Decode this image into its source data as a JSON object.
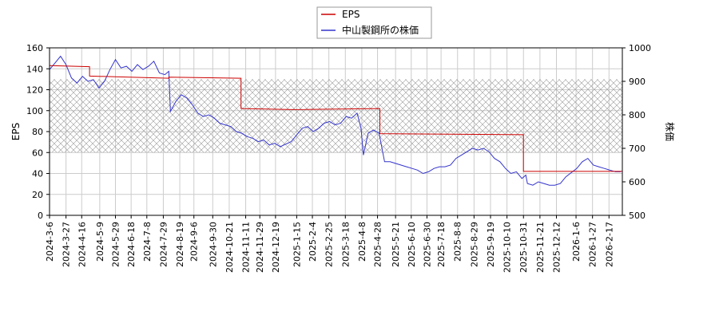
{
  "chart_data": {
    "type": "line",
    "legend": {
      "placement": "top-center",
      "entries": [
        {
          "label": "EPS",
          "color": "#cc0000"
        },
        {
          "label": "中山製鋼所の株価",
          "color": "#3333cc"
        }
      ]
    },
    "ylabel_left": "EPS",
    "ylabel_right": "株価",
    "ylim_left": [
      0,
      160
    ],
    "ylim_right": [
      500,
      1000
    ],
    "yticks_left": [
      "0",
      "20",
      "40",
      "60",
      "80",
      "100",
      "120",
      "140",
      "160"
    ],
    "yticks_right": [
      "500",
      "600",
      "700",
      "800",
      "900",
      "1000"
    ],
    "xlim": [
      "2024-03-06",
      "2026-03-06"
    ],
    "xticks": [
      "2024-3-6",
      "2024-3-27",
      "2024-4-16",
      "2024-5-9",
      "2024-5-29",
      "2024-6-18",
      "2024-7-8",
      "2024-7-29",
      "2024-8-19",
      "2024-9-6",
      "2024-9-30",
      "2024-10-21",
      "2024-11-11",
      "2024-11-29",
      "2024-12-19",
      "2025-1-15",
      "2025-2-4",
      "2025-2-25",
      "2025-3-18",
      "2025-4-8",
      "2025-4-28",
      "2025-5-21",
      "2025-6-10",
      "2025-6-30",
      "2025-7-18",
      "2025-8-8",
      "2025-8-29",
      "2025-9-19",
      "2025-10-10",
      "2025-10-31",
      "2025-11-21",
      "2025-12-12",
      "2026-1-6",
      "2026-1-27",
      "2026-2-17"
    ],
    "grid": true,
    "hatched_band_left_units": [
      60,
      130
    ],
    "series": [
      {
        "name": "EPS",
        "axis": "left",
        "color": "#cc0000",
        "x": [
          "2024-03-06",
          "2024-04-26",
          "2024-04-26",
          "2024-08-05",
          "2024-08-05",
          "2024-11-05",
          "2024-11-05",
          "2025-01-10",
          "2025-01-10",
          "2025-05-01",
          "2025-05-01",
          "2025-10-31",
          "2025-10-31",
          "2026-03-06"
        ],
        "values": [
          143,
          142,
          133,
          131,
          132,
          131,
          102,
          101,
          101,
          102,
          78,
          77,
          42,
          42
        ]
      },
      {
        "name": "中山製鋼所の株価",
        "axis": "right",
        "color": "#3333cc",
        "x": [
          "2024-03-06",
          "2024-03-13",
          "2024-03-20",
          "2024-03-27",
          "2024-04-03",
          "2024-04-10",
          "2024-04-17",
          "2024-04-24",
          "2024-05-01",
          "2024-05-08",
          "2024-05-15",
          "2024-05-22",
          "2024-05-29",
          "2024-06-05",
          "2024-06-12",
          "2024-06-19",
          "2024-06-26",
          "2024-07-03",
          "2024-07-10",
          "2024-07-17",
          "2024-07-24",
          "2024-07-31",
          "2024-08-05",
          "2024-08-07",
          "2024-08-14",
          "2024-08-21",
          "2024-08-28",
          "2024-09-04",
          "2024-09-11",
          "2024-09-18",
          "2024-09-25",
          "2024-10-02",
          "2024-10-09",
          "2024-10-16",
          "2024-10-23",
          "2024-10-30",
          "2024-11-06",
          "2024-11-13",
          "2024-11-20",
          "2024-11-27",
          "2024-12-04",
          "2024-12-11",
          "2024-12-18",
          "2024-12-25",
          "2025-01-08",
          "2025-01-15",
          "2025-01-22",
          "2025-01-29",
          "2025-02-05",
          "2025-02-12",
          "2025-02-19",
          "2025-02-26",
          "2025-03-05",
          "2025-03-12",
          "2025-03-19",
          "2025-03-26",
          "2025-04-02",
          "2025-04-07",
          "2025-04-10",
          "2025-04-16",
          "2025-04-23",
          "2025-04-30",
          "2025-05-07",
          "2025-05-14",
          "2025-05-21",
          "2025-05-28",
          "2025-06-04",
          "2025-06-11",
          "2025-06-18",
          "2025-06-25",
          "2025-07-02",
          "2025-07-09",
          "2025-07-16",
          "2025-07-23",
          "2025-07-30",
          "2025-08-06",
          "2025-08-13",
          "2025-08-20",
          "2025-08-27",
          "2025-09-03",
          "2025-09-10",
          "2025-09-17",
          "2025-09-24",
          "2025-10-01",
          "2025-10-08",
          "2025-10-15",
          "2025-10-22",
          "2025-10-29",
          "2025-11-03",
          "2025-11-05",
          "2025-11-12",
          "2025-11-19",
          "2025-11-26",
          "2025-12-03",
          "2025-12-10",
          "2025-12-17",
          "2025-12-24",
          "2026-01-07",
          "2026-01-14",
          "2026-01-21",
          "2026-01-28",
          "2026-02-04",
          "2026-02-11",
          "2026-02-18",
          "2026-02-25",
          "2026-03-04"
        ],
        "values": [
          935,
          955,
          975,
          950,
          910,
          895,
          915,
          900,
          905,
          880,
          900,
          935,
          965,
          940,
          945,
          930,
          950,
          935,
          945,
          960,
          925,
          920,
          930,
          810,
          840,
          860,
          850,
          830,
          805,
          795,
          800,
          790,
          775,
          770,
          765,
          750,
          745,
          735,
          730,
          720,
          725,
          710,
          715,
          705,
          720,
          740,
          760,
          765,
          750,
          760,
          775,
          780,
          770,
          775,
          795,
          790,
          805,
          760,
          680,
          745,
          755,
          745,
          660,
          660,
          655,
          650,
          645,
          640,
          635,
          625,
          630,
          640,
          645,
          645,
          650,
          670,
          680,
          690,
          700,
          695,
          700,
          690,
          670,
          660,
          640,
          625,
          630,
          610,
          620,
          595,
          590,
          600,
          595,
          590,
          590,
          595,
          615,
          640,
          660,
          670,
          650,
          645,
          640,
          635,
          630,
          630
        ]
      }
    ]
  }
}
